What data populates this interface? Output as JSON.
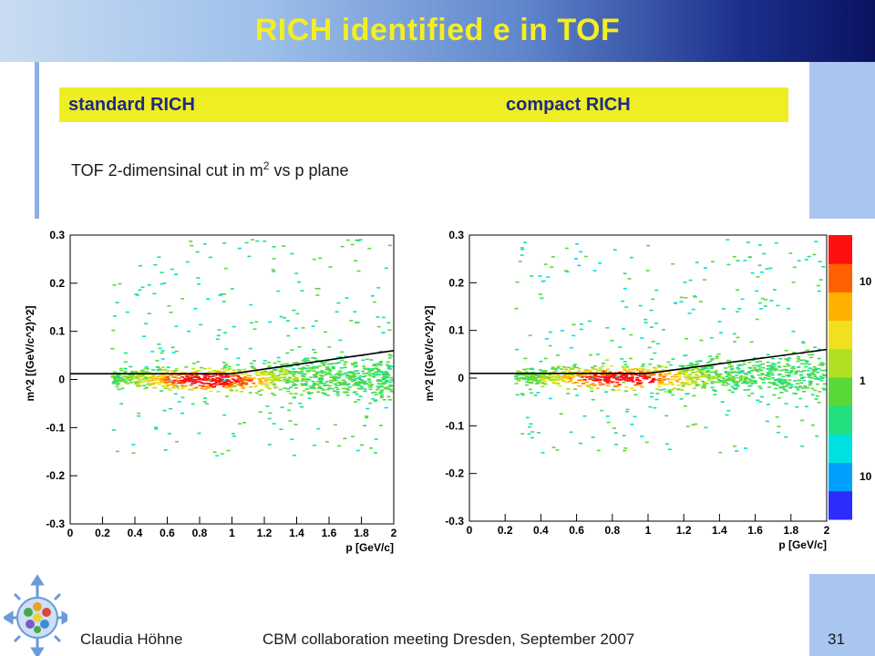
{
  "slide": {
    "title": "RICH identified e in TOF",
    "label_left": "standard RICH",
    "label_right": "compact RICH",
    "subtitle_text": "TOF 2-dimensinal cut in m",
    "subtitle_sup": "2",
    "subtitle_rest": " vs p plane",
    "footer_author": "Claudia Höhne",
    "footer_event": "CBM collaboration meeting Dresden, September 2007",
    "page_number": "31"
  },
  "colors": {
    "title": "#f4ee22",
    "label_bar": "#eeee22",
    "label_text": "#1c2a8a"
  },
  "chart_data": [
    {
      "type": "heatmap",
      "xlabel": "p [GeV/c]",
      "ylabel": "m^2 [(GeV/c^2)^2]",
      "xlim": [
        0,
        2
      ],
      "ylim": [
        -0.3,
        0.3
      ],
      "xticks": [
        "0",
        "0.2",
        "0.4",
        "0.6",
        "0.8",
        "1",
        "1.2",
        "1.4",
        "1.6",
        "1.8",
        "2"
      ],
      "yticks": [
        "-0.3",
        "-0.2",
        "-0.1",
        "0",
        "0.1",
        "0.2",
        "0.3"
      ],
      "cut_line": {
        "x": [
          0,
          1,
          2
        ],
        "y": [
          0.012,
          0.012,
          0.06
        ]
      }
    },
    {
      "type": "heatmap",
      "xlabel": "p [GeV/c]",
      "ylabel": "m^2 [(GeV/c^2)^2]",
      "xlim": [
        0,
        2
      ],
      "ylim": [
        -0.3,
        0.3
      ],
      "xticks": [
        "0",
        "0.2",
        "0.4",
        "0.6",
        "0.8",
        "1",
        "1.2",
        "1.4",
        "1.6",
        "1.8",
        "2"
      ],
      "yticks": [
        "-0.3",
        "-0.2",
        "-0.1",
        "0",
        "0.1",
        "0.2",
        "0.3"
      ],
      "cut_line": {
        "x": [
          0,
          1,
          2
        ],
        "y": [
          0.01,
          0.01,
          0.06
        ]
      },
      "colorbar_labels": [
        "10",
        "1",
        "10"
      ]
    }
  ]
}
